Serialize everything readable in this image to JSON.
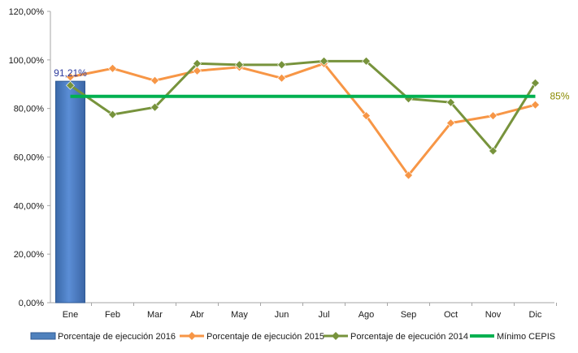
{
  "chart_data": {
    "type": "bar+line",
    "categories": [
      "Ene",
      "Feb",
      "Mar",
      "Abr",
      "May",
      "Jun",
      "Jul",
      "Ago",
      "Sep",
      "Oct",
      "Nov",
      "Dic"
    ],
    "ylim": [
      0,
      120
    ],
    "ytick_step": 20,
    "ytick_labels": [
      "0,00%",
      "20,00%",
      "40,00%",
      "60,00%",
      "80,00%",
      "100,00%",
      "120,00%"
    ],
    "grid": false,
    "legend_position": "bottom",
    "series": [
      {
        "name": "Porcentaje de ejecución 2016",
        "kind": "bar",
        "color": "#4f81bd",
        "values": [
          91.21,
          null,
          null,
          null,
          null,
          null,
          null,
          null,
          null,
          null,
          null,
          null
        ]
      },
      {
        "name": "Porcentaje de ejecución 2015",
        "kind": "line",
        "marker": "diamond",
        "color": "#f79646",
        "values": [
          93,
          96.5,
          91.5,
          95.5,
          97,
          92.5,
          98.5,
          77,
          52.5,
          74,
          77,
          81.5
        ]
      },
      {
        "name": "Porcentaje de ejecución 2014",
        "kind": "line",
        "marker": "diamond",
        "color": "#77933c",
        "values": [
          89.5,
          77.5,
          80.5,
          98.5,
          98,
          98,
          99.5,
          99.5,
          84,
          82.5,
          62.5,
          90.5
        ]
      },
      {
        "name": "Mínimo CEPIS",
        "kind": "line",
        "marker": "none",
        "color": "#00b050",
        "values": [
          85,
          85,
          85,
          85,
          85,
          85,
          85,
          85,
          85,
          85,
          85,
          85
        ]
      }
    ],
    "annotations": [
      {
        "text": "91,21%",
        "series": "Porcentaje de ejecución 2016",
        "category": "Ene",
        "color": "#2e3c9e"
      },
      {
        "text": "85%",
        "series": "Mínimo CEPIS",
        "category": "Dic",
        "color": "#8a8a00"
      }
    ]
  }
}
